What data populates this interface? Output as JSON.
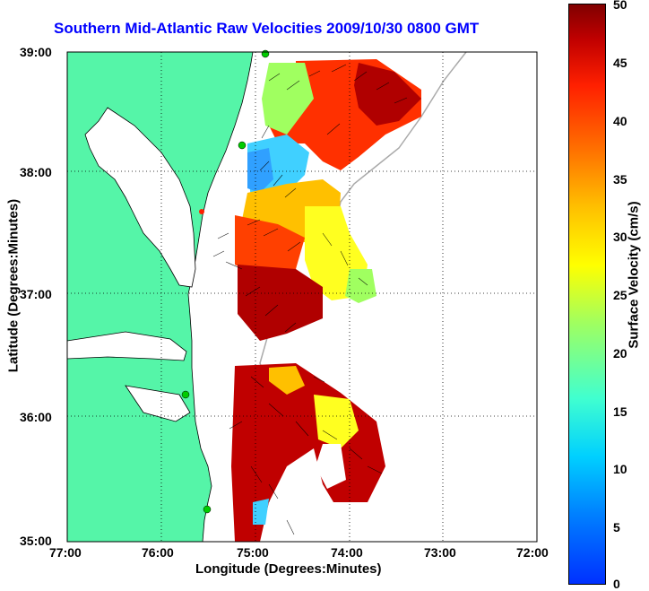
{
  "title": "Southern Mid-Atlantic Raw Velocities 2009/10/30 0800 GMT",
  "x_axis": {
    "label": "Longitude (Degrees:Minutes)",
    "ticks": [
      "77:00",
      "76:00",
      "75:00",
      "74:00",
      "73:00",
      "72:00"
    ]
  },
  "y_axis": {
    "label": "Latitude (Degrees:Minutes)",
    "ticks": [
      "39:00",
      "38:00",
      "37:00",
      "36:00",
      "35:00"
    ]
  },
  "colorbar": {
    "label": "Surface Velocity (cm/s)",
    "ticks": [
      "50",
      "45",
      "40",
      "35",
      "30",
      "25",
      "20",
      "15",
      "10",
      "5",
      "0"
    ],
    "range": [
      0,
      50
    ]
  },
  "colors": {
    "land": "#55f5a8",
    "coast": "#000000",
    "title": "#0000ff"
  }
}
